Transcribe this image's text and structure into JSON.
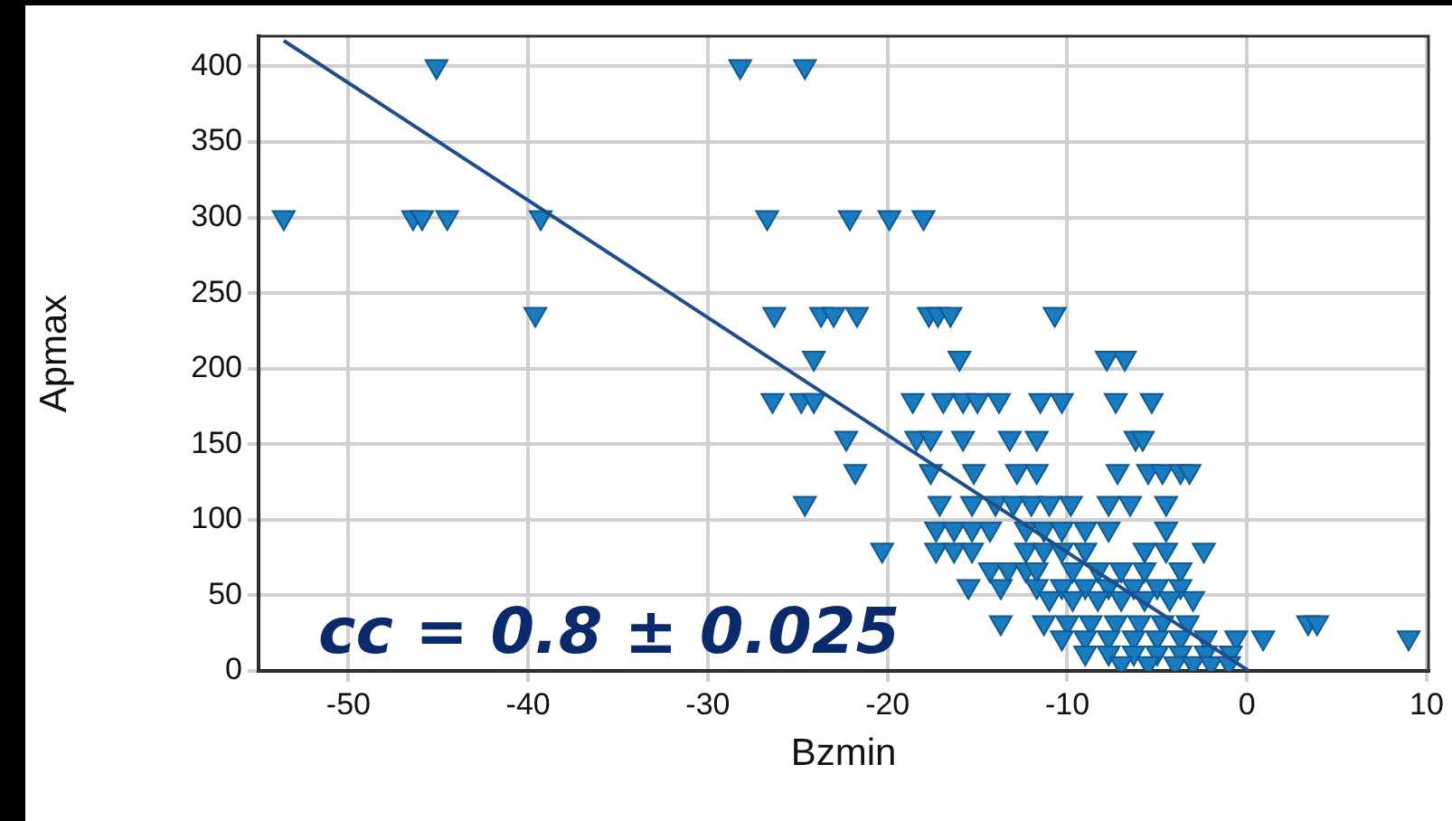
{
  "chart_data": {
    "type": "scatter",
    "xlabel": "Bzmin",
    "ylabel": "Apmax",
    "xlim": [
      -55,
      10.1
    ],
    "xticks": [
      -50,
      -40,
      -30,
      -20,
      -10,
      0,
      10
    ],
    "ylim": [
      0,
      420
    ],
    "yticks": [
      0,
      50,
      100,
      150,
      200,
      250,
      300,
      350,
      400
    ],
    "grid": true,
    "legend": false,
    "annotations": [
      "cc = 0.8 ± 0.025"
    ],
    "series": [
      {
        "marker": "triangle",
        "color": "#1a7bbf",
        "x": [
          -45.1,
          -28.2,
          -24.6,
          -53.6,
          -46.4,
          -45.9,
          -44.5,
          -39.3,
          -26.7,
          -22.1,
          -19.9,
          -18.0,
          -39.6,
          -26.3,
          -23.7,
          -23.0,
          -21.7,
          -17.7,
          -17.2,
          -16.5,
          -10.7,
          -24.1,
          -16.0,
          -7.8,
          -6.8,
          -26.4,
          -24.8,
          -24.1,
          -18.6,
          -16.9,
          -15.8,
          -15.0,
          -13.8,
          -11.5,
          -10.3,
          -7.3,
          -5.3,
          -22.3,
          -18.4,
          -17.6,
          -15.8,
          -13.2,
          -11.7,
          -6.2,
          -5.8,
          -21.8,
          -17.6,
          -15.2,
          -12.8,
          -11.7,
          -7.2,
          -5.5,
          -4.7,
          -3.7,
          -3.2,
          -24.6,
          -17.1,
          -15.3,
          -14.0,
          -13.0,
          -12.0,
          -11.0,
          -9.8,
          -7.7,
          -6.5,
          -4.5,
          -17.3,
          -16.3,
          -15.3,
          -14.3,
          -12.3,
          -11.3,
          -10.3,
          -9.0,
          -7.7,
          -4.5,
          -20.3,
          -17.3,
          -16.3,
          -15.3,
          -12.3,
          -11.3,
          -10.3,
          -9.0,
          -5.7,
          -4.5,
          -2.4,
          -14.3,
          -13.3,
          -12.3,
          -11.7,
          -9.7,
          -8.3,
          -7.0,
          -5.7,
          -3.7,
          -15.5,
          -13.7,
          -11.7,
          -10.3,
          -9.0,
          -7.7,
          -6.3,
          -5.0,
          -3.7,
          -11.0,
          -9.7,
          -8.3,
          -7.0,
          -5.7,
          -4.3,
          -3.0,
          -13.7,
          -11.3,
          -10.0,
          -8.7,
          -7.3,
          -6.0,
          -4.7,
          -3.3,
          3.4,
          3.9,
          -10.3,
          -9.0,
          -7.7,
          -6.3,
          -5.0,
          -3.7,
          -2.3,
          -0.6,
          0.9,
          9.0,
          -9.0,
          -7.7,
          -6.3,
          -5.0,
          -3.7,
          -2.3,
          -0.9,
          -7.0,
          -5.5,
          -4.0,
          -3.0,
          -2.0,
          -1.0
        ],
        "values": [
          400,
          400,
          400,
          300,
          300,
          300,
          300,
          300,
          300,
          300,
          300,
          300,
          236,
          236,
          236,
          236,
          236,
          236,
          236,
          236,
          236,
          207,
          207,
          207,
          207,
          179,
          179,
          179,
          179,
          179,
          179,
          179,
          179,
          179,
          179,
          179,
          179,
          154,
          154,
          154,
          154,
          154,
          154,
          154,
          154,
          132,
          132,
          132,
          132,
          132,
          132,
          132,
          132,
          132,
          132,
          111,
          111,
          111,
          111,
          111,
          111,
          111,
          111,
          111,
          111,
          111,
          94,
          94,
          94,
          94,
          94,
          94,
          94,
          94,
          94,
          94,
          80,
          80,
          80,
          80,
          80,
          80,
          80,
          80,
          80,
          80,
          80,
          67,
          67,
          67,
          67,
          67,
          67,
          67,
          67,
          67,
          56,
          56,
          56,
          56,
          56,
          56,
          56,
          56,
          56,
          48,
          48,
          48,
          48,
          48,
          48,
          48,
          32,
          32,
          32,
          32,
          32,
          32,
          32,
          32,
          32,
          32,
          22,
          22,
          22,
          22,
          22,
          22,
          22,
          22,
          22,
          22,
          12,
          12,
          12,
          12,
          12,
          12,
          12,
          5,
          5,
          5,
          5,
          5,
          5
        ]
      },
      {
        "type": "line",
        "color": "#1f4e8c",
        "x": [
          -53.6,
          0.1
        ],
        "values": [
          417,
          0
        ]
      }
    ]
  }
}
